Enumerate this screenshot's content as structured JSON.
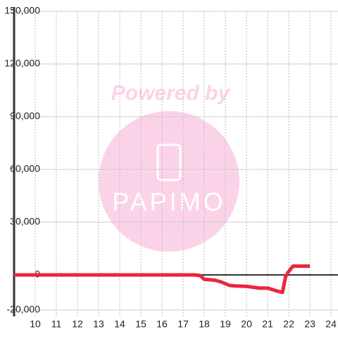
{
  "chart_data": {
    "type": "line",
    "watermark": {
      "top": "Powered by",
      "logo": "PAPIMO"
    },
    "x": [
      9,
      17.5,
      17.8,
      18,
      18.5,
      18.8,
      19.2,
      19.5,
      20,
      20.3,
      20.6,
      21,
      21.4,
      21.7,
      21.85,
      22,
      22.2,
      23
    ],
    "series": [
      {
        "color": "#e8283c",
        "values": [
          0,
          0,
          -300,
          -2500,
          -3000,
          -4000,
          -6000,
          -6300,
          -6500,
          -7000,
          -7500,
          -7500,
          -9000,
          -10000,
          -1000,
          2000,
          5000,
          5000
        ]
      }
    ],
    "xlim": [
      9,
      24.33
    ],
    "xticks": [
      10,
      11,
      12,
      13,
      14,
      15,
      16,
      17,
      18,
      19,
      20,
      21,
      22,
      23,
      24
    ],
    "ylim": [
      -20000,
      150000
    ],
    "yticks": [
      {
        "value": -20000,
        "label": "-20,000"
      },
      0,
      {
        "value": 30000,
        "label": "30,000"
      },
      {
        "value": 60000,
        "label": "60,000"
      },
      {
        "value": 90000,
        "label": "90,000"
      },
      {
        "value": 120000,
        "label": "120,000"
      },
      {
        "value": 150000,
        "label": "150,000"
      }
    ],
    "grid": true
  }
}
